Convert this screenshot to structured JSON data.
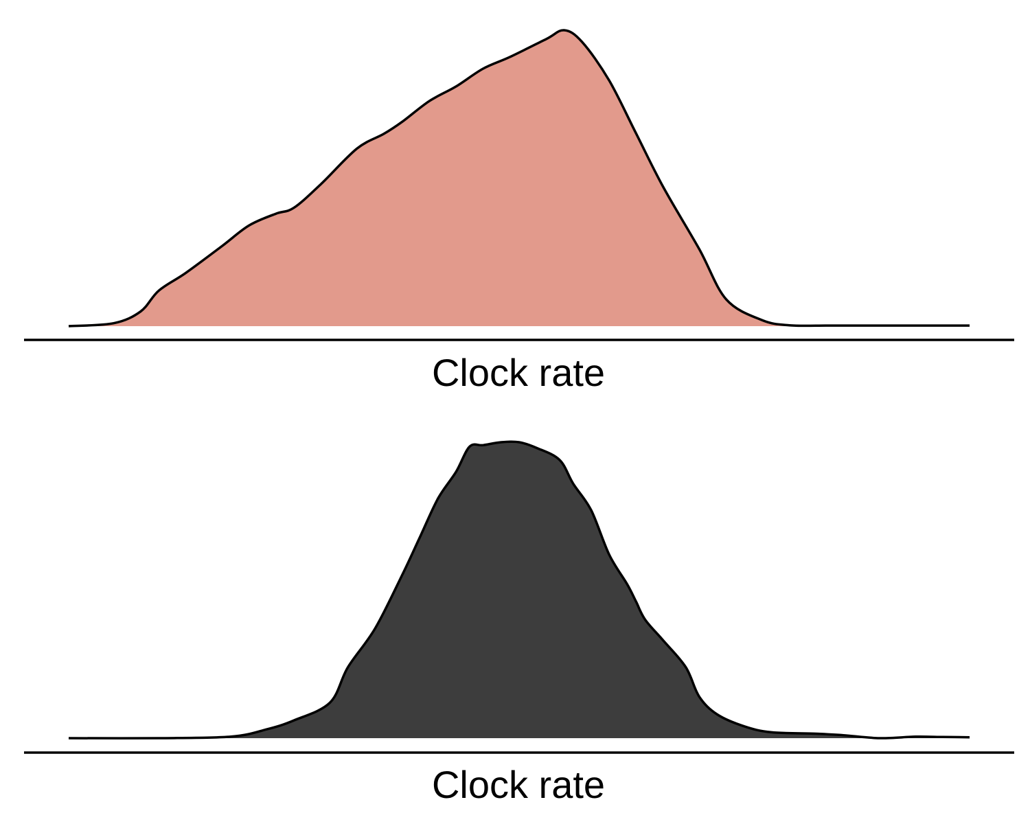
{
  "chart_data": [
    {
      "type": "area",
      "xlabel": "Clock rate",
      "ylabel": "",
      "fill": "#E29A8C",
      "stroke": "#000000",
      "grid": false,
      "y_axis": "hidden",
      "x": [
        0,
        0.05,
        0.08,
        0.1,
        0.13,
        0.17,
        0.2,
        0.23,
        0.25,
        0.28,
        0.32,
        0.35,
        0.37,
        0.4,
        0.43,
        0.46,
        0.49,
        0.53,
        0.55,
        0.57,
        0.6,
        0.63,
        0.66,
        0.7,
        0.73,
        0.77,
        0.8,
        0.84,
        0.87,
        0.9,
        0.95,
        1.0
      ],
      "y": [
        0.0,
        0.01,
        0.05,
        0.12,
        0.18,
        0.27,
        0.34,
        0.38,
        0.4,
        0.48,
        0.6,
        0.65,
        0.69,
        0.76,
        0.81,
        0.87,
        0.91,
        0.97,
        1.0,
        0.96,
        0.83,
        0.65,
        0.47,
        0.26,
        0.09,
        0.02,
        0.003,
        0.002,
        0.002,
        0.002,
        0.002,
        0.002
      ]
    },
    {
      "type": "area",
      "xlabel": "Clock rate",
      "ylabel": "",
      "fill": "#3D3D3D",
      "stroke": "#000000",
      "grid": false,
      "y_axis": "hidden",
      "x": [
        0,
        0.1,
        0.18,
        0.22,
        0.25,
        0.29,
        0.31,
        0.34,
        0.37,
        0.39,
        0.41,
        0.43,
        0.445,
        0.46,
        0.48,
        0.5,
        0.52,
        0.545,
        0.56,
        0.58,
        0.6,
        0.62,
        0.63,
        0.64,
        0.66,
        0.685,
        0.7,
        0.72,
        0.75,
        0.78,
        0.83,
        0.86,
        0.9,
        0.94,
        0.97,
        1.0
      ],
      "y": [
        0.0,
        0.0,
        0.005,
        0.03,
        0.06,
        0.12,
        0.24,
        0.37,
        0.55,
        0.68,
        0.81,
        0.9,
        0.985,
        0.99,
        1.0,
        1.0,
        0.98,
        0.94,
        0.86,
        0.77,
        0.62,
        0.52,
        0.46,
        0.4,
        0.33,
        0.24,
        0.14,
        0.08,
        0.04,
        0.02,
        0.015,
        0.01,
        0.0,
        0.005,
        0.004,
        0.003
      ]
    }
  ]
}
